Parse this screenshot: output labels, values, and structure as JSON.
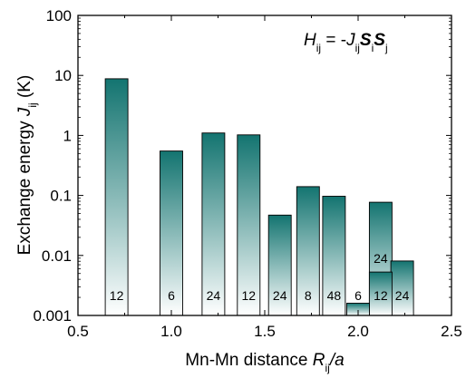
{
  "chart_data": {
    "type": "bar",
    "y_scale": "log",
    "xlim": [
      0.5,
      2.5
    ],
    "ylim": [
      0.001,
      100
    ],
    "x_ticks": [
      {
        "value": 0.5,
        "label": "0.5"
      },
      {
        "value": 1.0,
        "label": "1.0"
      },
      {
        "value": 1.5,
        "label": "1.5"
      },
      {
        "value": 2.0,
        "label": "2.0"
      },
      {
        "value": 2.5,
        "label": "2.5"
      }
    ],
    "y_ticks": [
      {
        "value": 0.001,
        "label": "0.001"
      },
      {
        "value": 0.01,
        "label": "0.01"
      },
      {
        "value": 0.1,
        "label": "0.1"
      },
      {
        "value": 1,
        "label": "1"
      },
      {
        "value": 10,
        "label": "10"
      },
      {
        "value": 100,
        "label": "100"
      }
    ],
    "xlabel": {
      "main": "Mn-Mn distance ",
      "var": "R",
      "sub": "ij",
      "tail": "/a"
    },
    "ylabel": {
      "main": "Exchange energy ",
      "var": "J",
      "sub": "ij",
      "tail": " (K)"
    },
    "formula": {
      "lhs": "H",
      "lhs_sub": "ij",
      "eq": " = -",
      "j": "J",
      "j_sub": "ij",
      "s1": "S",
      "s1_sub": "i",
      "s2": "S",
      "s2_sub": "j"
    },
    "gradient": {
      "top": "#137470",
      "bottom": "#ffffff"
    },
    "bars": [
      {
        "x": 0.707,
        "value": 8.8,
        "count": "12"
      },
      {
        "x": 1.0,
        "value": 0.55,
        "count": "6"
      },
      {
        "x": 1.225,
        "value": 1.1,
        "count": "24"
      },
      {
        "x": 1.414,
        "value": 1.02,
        "count": "12"
      },
      {
        "x": 1.581,
        "value": 0.047,
        "count": "24"
      },
      {
        "x": 1.732,
        "value": 0.14,
        "count": "8"
      },
      {
        "x": 1.871,
        "value": 0.097,
        "count": "48"
      },
      {
        "x": 2.0,
        "value": 0.0016,
        "count": "6"
      },
      {
        "x": 2.121,
        "value": 0.077,
        "count": "12"
      },
      {
        "x": 2.121,
        "value": 0.0053,
        "count": "24"
      },
      {
        "x": 2.236,
        "value": 0.0081,
        "count": "24"
      }
    ]
  }
}
